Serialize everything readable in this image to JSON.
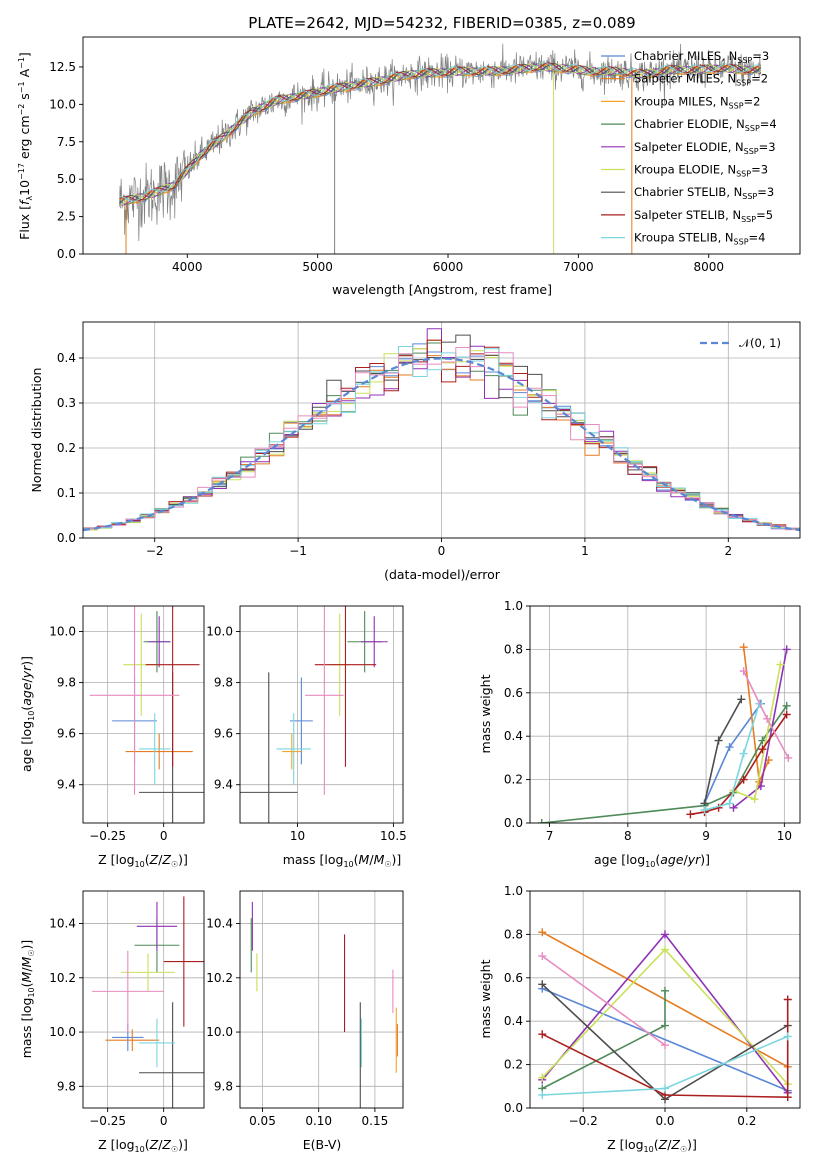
{
  "colors": [
    "#5a87d6",
    "#e67c20",
    "#f7a22b",
    "#4f8a58",
    "#9031b4",
    "#c9e05a",
    "#4d4d4d",
    "#aa1e1e",
    "#7ad6de",
    "#e88bc0"
  ],
  "chart_data": [
    {
      "type": "line",
      "title": "PLATE=2642, MJD=54232, FIBERID=0385, z=0.089",
      "xlabel": "wavelength [Angstrom, rest frame]",
      "ylabel": "Flux [f_λ 10^-17 erg cm^-2 s^-1 A^-1]",
      "xlim": [
        3200,
        8700
      ],
      "ylim": [
        0,
        14.5
      ],
      "xticks": [
        4000,
        5000,
        6000,
        7000,
        8000
      ],
      "yticks": [
        0.0,
        2.5,
        5.0,
        7.5,
        10.0,
        12.5
      ],
      "ytick_labels": [
        "0.0",
        "2.5",
        "5.0",
        "7.5",
        "10.0",
        "12.5"
      ],
      "spectrum_anchor": {
        "x": [
          3500,
          3700,
          3900,
          4100,
          4300,
          4500,
          4700,
          4900,
          5100,
          5300,
          5500,
          5700,
          5900,
          6100,
          6300,
          6500,
          6700,
          6900,
          7100,
          7300,
          7500,
          7700,
          7900,
          8100,
          8300
        ],
        "y": [
          3.5,
          3.9,
          4.6,
          6.6,
          8.0,
          9.5,
          10.3,
          10.6,
          11.0,
          11.3,
          11.6,
          12.0,
          12.1,
          12.2,
          12.2,
          12.3,
          12.5,
          12.4,
          12.2,
          12.2,
          12.0,
          12.3,
          12.3,
          12.4,
          12.3
        ]
      },
      "series": [
        {
          "name": "Chabrier MILES, N_SSP=3"
        },
        {
          "name": "Salpeter MILES, N_SSP=2"
        },
        {
          "name": "Kroupa MILES, N_SSP=2"
        },
        {
          "name": "Chabrier ELODIE, N_SSP=4"
        },
        {
          "name": "Salpeter ELODIE, N_SSP=3"
        },
        {
          "name": "Kroupa ELODIE, N_SSP=3"
        },
        {
          "name": "Chabrier STELIB, N_SSP=3"
        },
        {
          "name": "Salpeter STELIB, N_SSP=5"
        },
        {
          "name": "Kroupa STELIB, N_SSP=4"
        }
      ],
      "legend": "top-right"
    },
    {
      "type": "line",
      "subtype": "step-histogram",
      "xlabel": "(data-model)/error",
      "ylabel": "Normed distribution",
      "xlim": [
        -2.5,
        2.5
      ],
      "ylim": [
        0,
        0.48
      ],
      "xticks": [
        -2,
        -1,
        0,
        1,
        2
      ],
      "yticks": [
        0.0,
        0.1,
        0.2,
        0.3,
        0.4
      ],
      "ytick_labels": [
        "0.0",
        "0.1",
        "0.2",
        "0.3",
        "0.4"
      ],
      "bin_width": 0.1,
      "gaussian": {
        "name": "N(0,1)",
        "label": "𝒩(0, 1)"
      },
      "legend": "top-right"
    },
    {
      "type": "scatter",
      "subtype": "errorbar",
      "xlabel": "Z [log10(Z/Z☉)]",
      "ylabel": "age [log10(age/yr)]",
      "xlim": [
        -0.36,
        0.18
      ],
      "ylim": [
        9.25,
        10.1
      ],
      "xticks": [
        -0.25,
        0.0
      ],
      "yticks": [
        9.4,
        9.6,
        9.8,
        10.0
      ],
      "points": [
        {
          "c": 0,
          "x": -0.13,
          "y": 9.65,
          "xerr": 0.1,
          "yerr": 0.17
        },
        {
          "c": 1,
          "x": -0.02,
          "y": 9.53,
          "xerr": 0.15,
          "yerr": 0.07
        },
        {
          "c": 3,
          "x": -0.03,
          "y": 9.96,
          "xerr": 0.06,
          "yerr": 0.12
        },
        {
          "c": 4,
          "x": -0.02,
          "y": 9.96,
          "xerr": 0.05,
          "yerr": 0.1
        },
        {
          "c": 5,
          "x": -0.1,
          "y": 9.87,
          "xerr": 0.08,
          "yerr": 0.2
        },
        {
          "c": 6,
          "x": 0.04,
          "y": 9.37,
          "xerr": 0.15,
          "yerr": 0.47
        },
        {
          "c": 7,
          "x": 0.04,
          "y": 9.87,
          "xerr": 0.12,
          "yerr": 0.4
        },
        {
          "c": 8,
          "x": -0.04,
          "y": 9.54,
          "xerr": 0.07,
          "yerr": 0.14
        },
        {
          "c": 9,
          "x": -0.13,
          "y": 9.75,
          "xerr": 0.2,
          "yerr": 0.39
        }
      ]
    },
    {
      "type": "scatter",
      "subtype": "errorbar",
      "xlabel": "mass [log10(M/M☉)]",
      "xlim": [
        9.7,
        10.55
      ],
      "ylim": [
        9.25,
        10.1
      ],
      "xticks": [
        10.0,
        10.5
      ],
      "yticks": [
        9.4,
        9.6,
        9.8,
        10.0
      ],
      "points": [
        {
          "c": 0,
          "x": 10.02,
          "y": 9.65,
          "xerr": 0.06,
          "yerr": 0.17
        },
        {
          "c": 2,
          "x": 9.97,
          "y": 9.53,
          "xerr": 0.05,
          "yerr": 0.07
        },
        {
          "c": 3,
          "x": 10.35,
          "y": 9.96,
          "xerr": 0.09,
          "yerr": 0.12
        },
        {
          "c": 4,
          "x": 10.4,
          "y": 9.96,
          "xerr": 0.07,
          "yerr": 0.1
        },
        {
          "c": 5,
          "x": 10.22,
          "y": 9.87,
          "xerr": 0.05,
          "yerr": 0.2
        },
        {
          "c": 6,
          "x": 9.85,
          "y": 9.37,
          "xerr": 0.15,
          "yerr": 0.47
        },
        {
          "c": 7,
          "x": 10.25,
          "y": 9.87,
          "xerr": 0.16,
          "yerr": 0.4
        },
        {
          "c": 8,
          "x": 9.98,
          "y": 9.54,
          "xerr": 0.09,
          "yerr": 0.14
        },
        {
          "c": 9,
          "x": 10.14,
          "y": 9.75,
          "xerr": 0.1,
          "yerr": 0.39
        }
      ]
    },
    {
      "type": "line",
      "xlabel": "age [log10(age/yr)]",
      "ylabel": "mass weight",
      "xlim": [
        6.75,
        10.2
      ],
      "ylim": [
        0,
        1.0
      ],
      "xticks": [
        7,
        8,
        9,
        10
      ],
      "yticks": [
        0.0,
        0.2,
        0.4,
        0.6,
        0.8,
        1.0
      ],
      "ytick_labels": [
        "0.0",
        "0.2",
        "0.4",
        "0.6",
        "0.8",
        "1.0"
      ],
      "series": [
        {
          "c": 0,
          "x": [
            8.98,
            9.3,
            9.7
          ],
          "y": [
            0.09,
            0.35,
            0.55
          ]
        },
        {
          "c": 1,
          "x": [
            9.48,
            9.68,
            9.8
          ],
          "y": [
            0.81,
            0.19,
            0.29
          ]
        },
        {
          "c": 3,
          "x": [
            6.9,
            8.98,
            9.35,
            9.72,
            10.03
          ],
          "y": [
            0.0,
            0.08,
            0.14,
            0.38,
            0.54
          ]
        },
        {
          "c": 4,
          "x": [
            9.35,
            9.7,
            10.03
          ],
          "y": [
            0.07,
            0.17,
            0.8
          ]
        },
        {
          "c": 5,
          "x": [
            9.35,
            9.62,
            9.95
          ],
          "y": [
            0.15,
            0.11,
            0.73
          ]
        },
        {
          "c": 6,
          "x": [
            8.98,
            9.16,
            9.45
          ],
          "y": [
            0.09,
            0.38,
            0.57
          ]
        },
        {
          "c": 7,
          "x": [
            8.8,
            8.98,
            9.16,
            9.48,
            9.72,
            10.03
          ],
          "y": [
            0.04,
            0.05,
            0.07,
            0.2,
            0.34,
            0.5
          ]
        },
        {
          "c": 8,
          "x": [
            8.98,
            9.3,
            9.48,
            9.68
          ],
          "y": [
            0.06,
            0.09,
            0.32,
            0.55
          ]
        },
        {
          "c": 9,
          "x": [
            9.48,
            9.78,
            10.05
          ],
          "y": [
            0.7,
            0.48,
            0.3
          ]
        }
      ]
    },
    {
      "type": "scatter",
      "subtype": "errorbar",
      "xlabel": "Z [log10(Z/Z☉)]",
      "ylabel": "mass [log10(M/M☉)]",
      "xlim": [
        -0.36,
        0.18
      ],
      "ylim": [
        9.72,
        10.52
      ],
      "xticks": [
        -0.25,
        0.0
      ],
      "yticks": [
        9.8,
        10.0,
        10.2,
        10.4
      ],
      "points": [
        {
          "c": 0,
          "x": -0.16,
          "y": 9.98,
          "xerr": 0.07,
          "yerr": 0.05
        },
        {
          "c": 1,
          "x": -0.14,
          "y": 9.97,
          "xerr": 0.12,
          "yerr": 0.04
        },
        {
          "c": 3,
          "x": -0.03,
          "y": 10.32,
          "xerr": 0.1,
          "yerr": 0.1
        },
        {
          "c": 4,
          "x": -0.03,
          "y": 10.39,
          "xerr": 0.09,
          "yerr": 0.09
        },
        {
          "c": 5,
          "x": -0.07,
          "y": 10.22,
          "xerr": 0.12,
          "yerr": 0.07
        },
        {
          "c": 6,
          "x": 0.04,
          "y": 9.85,
          "xerr": 0.15,
          "yerr": 0.26
        },
        {
          "c": 7,
          "x": 0.09,
          "y": 10.26,
          "xerr": 0.09,
          "yerr": 0.24
        },
        {
          "c": 8,
          "x": -0.03,
          "y": 9.96,
          "xerr": 0.08,
          "yerr": 0.09
        },
        {
          "c": 9,
          "x": -0.16,
          "y": 10.15,
          "xerr": 0.16,
          "yerr": 0.15
        }
      ]
    },
    {
      "type": "scatter",
      "subtype": "errorbar",
      "xlabel": "E(B-V)",
      "xlim": [
        0.03,
        0.175
      ],
      "ylim": [
        9.72,
        10.52
      ],
      "xticks": [
        0.05,
        0.1,
        0.15
      ],
      "xtick_labels": [
        "0.05",
        "0.10",
        "0.15"
      ],
      "yticks": [
        9.8,
        10.0,
        10.2,
        10.4
      ],
      "points": [
        {
          "c": 4,
          "x": 0.041,
          "y": 10.39,
          "xerr": 0,
          "yerr": 0.09
        },
        {
          "c": 3,
          "x": 0.04,
          "y": 10.32,
          "xerr": 0,
          "yerr": 0.1
        },
        {
          "c": 5,
          "x": 0.045,
          "y": 10.22,
          "xerr": 0,
          "yerr": 0.07
        },
        {
          "c": 7,
          "x": 0.123,
          "y": 10.18,
          "xerr": 0,
          "yerr": 0.18
        },
        {
          "c": 8,
          "x": 0.138,
          "y": 9.96,
          "xerr": 0,
          "yerr": 0.09
        },
        {
          "c": 6,
          "x": 0.137,
          "y": 9.85,
          "xerr": 0,
          "yerr": 0.26
        },
        {
          "c": 2,
          "x": 0.169,
          "y": 9.97,
          "xerr": 0,
          "yerr": 0.12
        },
        {
          "c": 9,
          "x": 0.166,
          "y": 10.15,
          "xerr": 0,
          "yerr": 0.08
        },
        {
          "c": 1,
          "x": 0.17,
          "y": 9.97,
          "xerr": 0,
          "yerr": 0.06
        }
      ]
    },
    {
      "type": "line",
      "xlabel": "Z [log10(Z/Z☉)]",
      "ylabel": "mass weight",
      "xlim": [
        -0.33,
        0.33
      ],
      "ylim": [
        0,
        1.0
      ],
      "xticks": [
        -0.2,
        0.0,
        0.2
      ],
      "xtick_labels": [
        "−0.2",
        "0.0",
        "0.2"
      ],
      "yticks": [
        0.0,
        0.2,
        0.4,
        0.6,
        0.8,
        1.0
      ],
      "ytick_labels": [
        "0.0",
        "0.2",
        "0.4",
        "0.6",
        "0.8",
        "1.0"
      ],
      "series": [
        {
          "c": 0,
          "x": [
            -0.3,
            0.3
          ],
          "y": [
            0.55,
            0.08
          ]
        },
        {
          "c": 1,
          "x": [
            -0.3,
            0.3
          ],
          "y": [
            0.81,
            0.19
          ]
        },
        {
          "c": 3,
          "x": [
            -0.3,
            0.0,
            0.0
          ],
          "y": [
            0.09,
            0.38,
            0.54
          ]
        },
        {
          "c": 4,
          "x": [
            -0.3,
            0.0,
            0.3
          ],
          "y": [
            0.13,
            0.8,
            0.07
          ]
        },
        {
          "c": 5,
          "x": [
            -0.3,
            0.0,
            0.3
          ],
          "y": [
            0.14,
            0.73,
            0.11
          ]
        },
        {
          "c": 6,
          "x": [
            -0.3,
            0.0,
            0.3
          ],
          "y": [
            0.57,
            0.04,
            0.38
          ]
        },
        {
          "c": 7,
          "x": [
            -0.3,
            0.0,
            0.3,
            0.3
          ],
          "y": [
            0.34,
            0.06,
            0.05,
            0.5
          ]
        },
        {
          "c": 8,
          "x": [
            -0.3,
            0.0,
            0.3
          ],
          "y": [
            0.06,
            0.09,
            0.33
          ]
        },
        {
          "c": 9,
          "x": [
            -0.3,
            0.0
          ],
          "y": [
            0.7,
            0.29
          ]
        }
      ]
    }
  ]
}
